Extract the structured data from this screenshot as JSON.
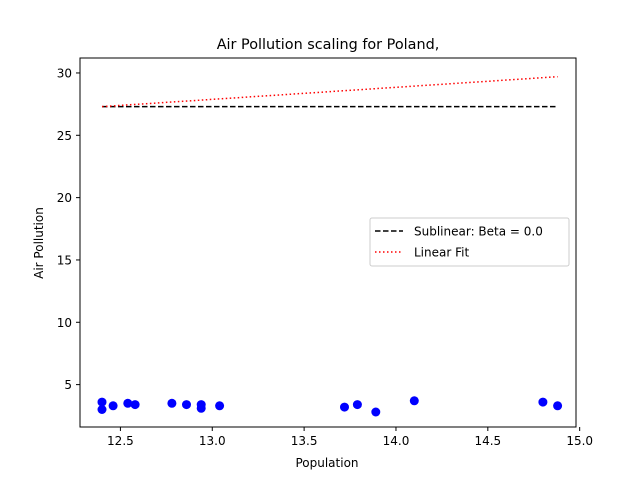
{
  "chart_data": {
    "type": "scatter",
    "title": "Air Pollution scaling for Poland,",
    "xlabel": "Population",
    "ylabel": "Air Pollution",
    "xlim": [
      12.28,
      14.98
    ],
    "ylim": [
      1.6,
      31.2
    ],
    "xticks": [
      12.5,
      13.0,
      13.5,
      14.0,
      14.5,
      15.0
    ],
    "xtick_labels": [
      "12.5",
      "13.0",
      "13.5",
      "14.0",
      "14.5",
      "15.0"
    ],
    "yticks": [
      5,
      10,
      15,
      20,
      25,
      30
    ],
    "ytick_labels": [
      "5",
      "10",
      "15",
      "20",
      "25",
      "30"
    ],
    "grid": false,
    "legend_position": "center-right",
    "points": {
      "color": "#0000ff",
      "x": [
        12.4,
        12.4,
        12.46,
        12.54,
        12.58,
        12.78,
        12.86,
        12.94,
        12.94,
        13.04,
        13.72,
        13.79,
        13.89,
        14.1,
        14.8,
        14.88
      ],
      "y": [
        3.6,
        3.0,
        3.3,
        3.5,
        3.4,
        3.5,
        3.4,
        3.4,
        3.1,
        3.3,
        3.2,
        3.4,
        2.8,
        3.7,
        3.6,
        3.3
      ]
    },
    "series": [
      {
        "name": "Sublinear: Beta = 0.0",
        "style": "dashed",
        "color": "#000000",
        "x": [
          12.4,
          14.88
        ],
        "y": [
          27.3,
          27.3
        ]
      },
      {
        "name": "Linear Fit",
        "style": "dotted",
        "color": "#ff0000",
        "x": [
          12.4,
          14.88
        ],
        "y": [
          27.3,
          29.7
        ]
      }
    ]
  }
}
